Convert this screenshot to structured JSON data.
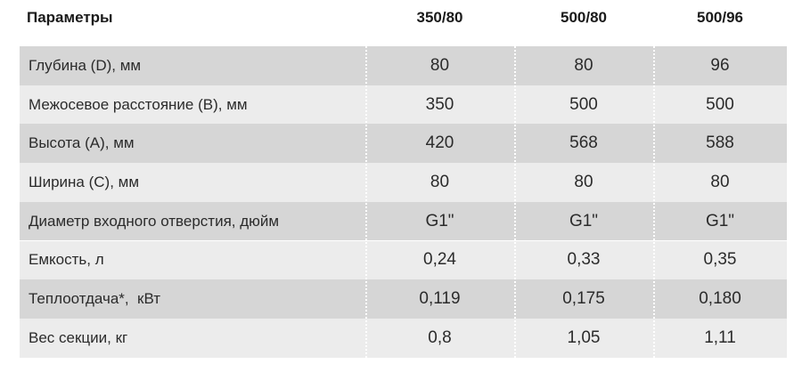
{
  "table": {
    "header": [
      "Параметры",
      "350/80",
      "500/80",
      "500/96"
    ],
    "rows": [
      [
        "Глубина (D), мм",
        "80",
        "80",
        "96"
      ],
      [
        "Межосевое расстояние (B), мм",
        "350",
        "500",
        "500"
      ],
      [
        "Высота (A), мм",
        "420",
        "568",
        "588"
      ],
      [
        "Ширина (C), мм",
        "80",
        "80",
        "80"
      ],
      [
        "Диаметр входного отверстия, дюйм",
        "G1\"",
        "G1\"",
        "G1\""
      ],
      [
        "Емкость, л",
        "0,24",
        "0,33",
        "0,35"
      ],
      [
        "Теплоотдача*,  кВт",
        "0,119",
        "0,175",
        "0,180"
      ],
      [
        "Вес секции, кг",
        "0,8",
        "1,05",
        "1,11"
      ]
    ]
  }
}
